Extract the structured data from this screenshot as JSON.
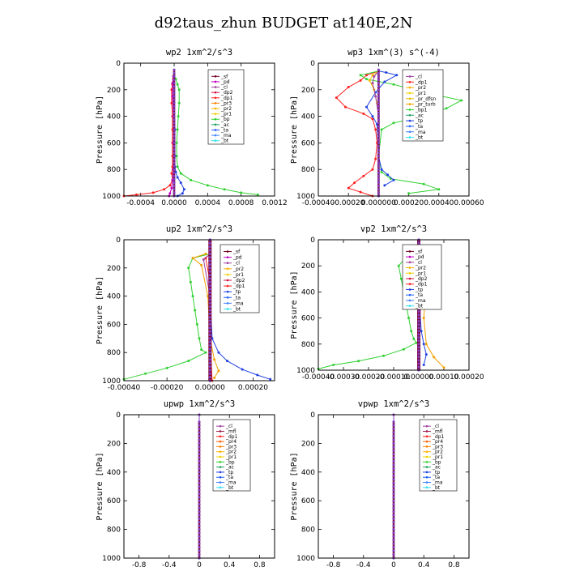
{
  "figure_title": "d92taus_zhun  BUDGET at140E,2N",
  "chart_data": [
    {
      "id": "wp2",
      "type": "line",
      "title": "wp2   1xm^2/s^3",
      "ylabel": "Pressure  [hPa]",
      "ylim": [
        1000,
        0
      ],
      "yticks": [
        0,
        200,
        400,
        600,
        800,
        1000
      ],
      "xlim": [
        -0.0006,
        0.0012
      ],
      "xticks": [
        -0.0004,
        0.0,
        0.0004,
        0.0008,
        0.0012
      ],
      "xtick_labels": [
        "-0.0004",
        "0.0000",
        "0.0004",
        "0.0008",
        "0.0012"
      ],
      "legend": [
        "_sf",
        "_pd",
        "_cl",
        "_dp2",
        "_dp1",
        "_pr3",
        "_pr2",
        "_pr1",
        "_bp",
        "_ac",
        "_ta",
        "_ma",
        "_bt"
      ],
      "series": [
        {
          "name": "_dp1",
          "color": "#ff2020",
          "x": [
            0.0,
            -1e-05,
            -2e-05,
            -3e-05,
            -3e-05,
            -2e-05,
            -2e-05,
            -2e-05,
            -2e-05,
            -2e-05,
            -3e-05,
            -2e-05,
            -5e-05,
            -0.00012,
            -0.00025,
            -0.00045,
            -0.0006
          ],
          "y": [
            90,
            120,
            160,
            200,
            300,
            400,
            500,
            600,
            700,
            780,
            830,
            880,
            920,
            950,
            975,
            990,
            1000
          ]
        },
        {
          "name": "_bp",
          "color": "#30d030",
          "x": [
            0.0,
            2e-05,
            4e-05,
            6e-05,
            6e-05,
            5e-05,
            4e-05,
            3e-05,
            3e-05,
            4e-05,
            8e-05,
            0.0002,
            0.0004,
            0.0006,
            0.0008,
            0.001
          ],
          "y": [
            90,
            120,
            160,
            200,
            300,
            400,
            500,
            600,
            700,
            780,
            830,
            880,
            920,
            950,
            975,
            990
          ]
        },
        {
          "name": "_ta",
          "color": "#2040e0",
          "x": [
            0.0,
            0.0,
            1e-05,
            1e-05,
            1e-05,
            2e-05,
            4e-05,
            8e-05,
            0.00012,
            0.0001,
            4e-05
          ],
          "y": [
            100,
            300,
            500,
            700,
            780,
            820,
            860,
            900,
            950,
            980,
            1000
          ]
        },
        {
          "name": "_pd",
          "color": "#c000c0",
          "x": [
            -1e-05,
            -2e-05,
            -2e-05,
            -1e-05,
            -1e-05,
            -1e-05,
            -2e-05,
            -3e-05,
            -5e-05,
            -6e-05
          ],
          "y": [
            100,
            150,
            250,
            400,
            600,
            800,
            880,
            940,
            980,
            1000
          ]
        },
        {
          "name": "_bt",
          "color": "#30e0f0",
          "x": [
            0.0,
            0.0,
            0.0,
            0.0,
            0.0,
            0.0
          ],
          "y": [
            100,
            300,
            500,
            700,
            900,
            1000
          ]
        },
        {
          "name": "_sf",
          "color": "#700020",
          "x": [
            0.0,
            0.0,
            0.0,
            0.0
          ],
          "y": [
            100,
            400,
            700,
            1000
          ]
        }
      ]
    },
    {
      "id": "wp3",
      "type": "line",
      "title": "wp3   1xm^(3) s^(-4)",
      "ylabel": "Pressure  [hPa]",
      "ylim": [
        1000,
        0
      ],
      "yticks": [
        0,
        200,
        400,
        600,
        800,
        1000
      ],
      "xlim": [
        -0.0004,
        0.0006
      ],
      "xticks": [
        -0.0004,
        -0.0002,
        0.0,
        0.0002,
        0.0004,
        0.0006
      ],
      "xtick_labels": [
        "-0.00040",
        "-0.00020",
        "0.000000",
        "0.00020",
        "0.00040",
        "0.00060"
      ],
      "legend": [
        "_cl",
        "_dp1",
        "_pr2",
        "_pr1",
        "_pr_dfsn",
        "_pr_turb",
        "_bp1",
        "_ac",
        "_tp",
        "_ta",
        "_ma",
        "_bt"
      ],
      "series": [
        {
          "name": "_dp1",
          "color": "#ff2020",
          "x": [
            0.0,
            -8e-05,
            -0.00012,
            -0.0002,
            -0.00028,
            -0.00022,
            -0.0001,
            -4e-05,
            -2e-05,
            -1e-05,
            -2e-05,
            -4e-05,
            -0.0001,
            -0.00016,
            -0.0002,
            -0.00012,
            -4e-05
          ],
          "y": [
            60,
            90,
            130,
            180,
            260,
            330,
            380,
            420,
            500,
            600,
            720,
            800,
            850,
            900,
            940,
            970,
            1000
          ]
        },
        {
          "name": "_bp1",
          "color": "#30d030",
          "x": [
            0.0,
            -0.00012,
            -8e-05,
            0.0001,
            0.0003,
            0.00055,
            0.00045,
            0.0003,
            0.0001,
            2e-05,
            0.0,
            2e-05,
            8e-05,
            0.0003,
            0.0004,
            0.0002
          ],
          "y": [
            60,
            90,
            120,
            160,
            220,
            280,
            340,
            400,
            450,
            500,
            700,
            820,
            870,
            910,
            950,
            980
          ]
        },
        {
          "name": "_tp",
          "color": "#2040e0",
          "x": [
            0.0,
            5e-05,
            0.00012,
            4e-05,
            -2e-05,
            -8e-05,
            -4e-05,
            -1e-05,
            0.0,
            2e-05,
            6e-05,
            0.0001,
            4e-05
          ],
          "y": [
            60,
            70,
            90,
            140,
            220,
            330,
            400,
            460,
            700,
            800,
            840,
            880,
            920
          ]
        },
        {
          "name": "_pr1",
          "color": "#f0c000",
          "x": [
            0.0,
            -4e-05,
            -6e-05,
            -3e-05,
            -1e-05,
            0.0
          ],
          "y": [
            60,
            90,
            130,
            200,
            300,
            400
          ]
        },
        {
          "name": "_cl",
          "color": "#a040a0",
          "x": [
            0.0,
            -3e-05,
            -4e-05,
            -2e-05,
            0.0
          ],
          "y": [
            60,
            100,
            150,
            250,
            400
          ]
        },
        {
          "name": "_bt",
          "color": "#30e0f0",
          "x": [
            0.0,
            0.0,
            0.0,
            0.0
          ],
          "y": [
            60,
            400,
            700,
            1000
          ]
        }
      ]
    },
    {
      "id": "up2",
      "type": "line",
      "title": "up2   1xm^2/s^3",
      "ylabel": "Pressure  [hPa]",
      "ylim": [
        1000,
        0
      ],
      "yticks": [
        0,
        200,
        400,
        600,
        800,
        1000
      ],
      "xlim": [
        -0.0004,
        0.0003
      ],
      "xticks": [
        -0.0004,
        -0.0002,
        0.0,
        0.0002
      ],
      "xtick_labels": [
        "-0.00040",
        "-0.00020",
        "0.00000",
        "0.00020"
      ],
      "legend": [
        "_sf",
        "_pd",
        "_cl",
        "_pr2",
        "_pr1",
        "_dp2",
        "_dp1",
        "_tp",
        "_ta",
        "_ma",
        "_bt"
      ],
      "series": [
        {
          "name": "_dp1",
          "color": "#30d030",
          "x": [
            0.0,
            -8e-05,
            -0.0001,
            -9e-05,
            -8e-05,
            -7e-05,
            -6e-05,
            -5e-05,
            -4e-05,
            -2e-05,
            -0.0001,
            -0.0002,
            -0.0003,
            -0.0004
          ],
          "y": [
            100,
            130,
            200,
            300,
            400,
            500,
            600,
            700,
            780,
            800,
            860,
            910,
            950,
            990
          ]
        },
        {
          "name": "_pr1",
          "color": "#f0a000",
          "x": [
            -2e-05,
            -8e-05,
            -4e-05,
            -1e-05,
            0.0,
            2e-05,
            4e-05,
            2e-05
          ],
          "y": [
            100,
            130,
            180,
            400,
            700,
            850,
            930,
            980
          ]
        },
        {
          "name": "_ta",
          "color": "#2040e0",
          "x": [
            0.0,
            0.0,
            1e-05,
            4e-05,
            8e-05,
            0.00015,
            0.00022,
            0.00028
          ],
          "y": [
            100,
            400,
            700,
            800,
            860,
            920,
            960,
            990
          ]
        },
        {
          "name": "_dp2",
          "color": "#ff2020",
          "x": [
            0.0,
            -2e-05,
            0.0,
            0.0,
            1e-05
          ],
          "y": [
            100,
            130,
            300,
            700,
            1000
          ]
        },
        {
          "name": "_cl",
          "color": "#a040a0",
          "x": [
            0.0,
            -3e-05,
            0.0,
            0.0
          ],
          "y": [
            100,
            140,
            400,
            1000
          ]
        },
        {
          "name": "_sf",
          "color": "#700020",
          "x": [
            0.0,
            0.0,
            0.0
          ],
          "y": [
            0,
            500,
            1000
          ]
        }
      ]
    },
    {
      "id": "vp2",
      "type": "line",
      "title": "vp2   1xm^2/s^3",
      "ylabel": "Pressure  [hPa]",
      "ylim": [
        1000,
        0
      ],
      "yticks": [
        0,
        200,
        400,
        600,
        800,
        1000
      ],
      "xlim": [
        -0.0004,
        0.0002
      ],
      "xticks": [
        -0.0004,
        -0.0003,
        -0.0002,
        -0.0001,
        0.0,
        0.0001,
        0.0002
      ],
      "xtick_labels": [
        "-0.00040",
        "-0.00030",
        "-0.00020",
        "-0.00010",
        "0.00000",
        "0.00010",
        "0.00020"
      ],
      "legend": [
        "_sf",
        "_pd",
        "_cl",
        "_pr2",
        "_pr1",
        "_dp2",
        "_dp1",
        "_tp",
        "_ta",
        "_ma",
        "_bt"
      ],
      "series": [
        {
          "name": "_dp1",
          "color": "#30d030",
          "x": [
            0.0,
            -5e-05,
            -8e-05,
            -7e-05,
            -6e-05,
            -5e-05,
            -4e-05,
            -3e-05,
            -2e-05,
            -1e-05,
            -6e-05,
            -0.00014,
            -0.00024,
            -0.00034,
            -0.0004
          ],
          "y": [
            100,
            130,
            200,
            300,
            400,
            500,
            600,
            700,
            760,
            790,
            840,
            890,
            930,
            960,
            990
          ]
        },
        {
          "name": "_pr1",
          "color": "#f0a000",
          "x": [
            0.0,
            2e-05,
            5e-05,
            3e-05,
            2e-05,
            3e-05,
            6e-05,
            0.0001
          ],
          "y": [
            100,
            150,
            200,
            300,
            600,
            800,
            900,
            980
          ]
        },
        {
          "name": "_ta",
          "color": "#2040e0",
          "x": [
            0.0,
            0.0,
            1e-05,
            2e-05,
            3e-05,
            2e-05
          ],
          "y": [
            100,
            400,
            700,
            800,
            880,
            960
          ]
        },
        {
          "name": "_cl",
          "color": "#a040a0",
          "x": [
            0.0,
            2e-05,
            1e-05,
            0.0
          ],
          "y": [
            100,
            150,
            300,
            1000
          ]
        },
        {
          "name": "_sf",
          "color": "#700020",
          "x": [
            0.0,
            0.0,
            0.0
          ],
          "y": [
            0,
            500,
            1000
          ]
        }
      ]
    },
    {
      "id": "upwp",
      "type": "line",
      "title": "upwp   1xm^2/s^3",
      "ylabel": "Pressure  [hPa]",
      "ylim": [
        1000,
        0
      ],
      "yticks": [
        0,
        200,
        400,
        600,
        800,
        1000
      ],
      "xlim": [
        -1.0,
        1.0
      ],
      "xticks": [
        -0.8,
        -0.4,
        0.0,
        0.4,
        0.8
      ],
      "xtick_labels": [
        "-0.8",
        "-0.4",
        "0",
        "0.4",
        "0.8"
      ],
      "legend": [
        "_cl",
        "_mfl",
        "_dp1",
        "_pr4",
        "_pr3",
        "_pr2",
        "_pr1",
        "_bp",
        "_ac",
        "_tp",
        "_ta",
        "_ma",
        "_bt"
      ],
      "series": [
        {
          "name": "_dp1",
          "color": "#a02050",
          "x": [
            0,
            0,
            0,
            0
          ],
          "y": [
            0,
            400,
            800,
            1000
          ]
        },
        {
          "name": "_cl",
          "color": "#8040c0",
          "x": [
            0,
            0,
            0,
            0
          ],
          "y": [
            0,
            400,
            800,
            1000
          ]
        }
      ]
    },
    {
      "id": "vpwp",
      "type": "line",
      "title": "vpwp   1xm^2/s^3",
      "ylabel": "Pressure  [hPa]",
      "ylim": [
        1000,
        0
      ],
      "yticks": [
        0,
        200,
        400,
        600,
        800,
        1000
      ],
      "xlim": [
        -1.0,
        1.0
      ],
      "xticks": [
        -0.8,
        -0.4,
        0.0,
        0.4,
        0.8
      ],
      "xtick_labels": [
        "-0.8",
        "-0.4",
        "0",
        "0.4",
        "0.8"
      ],
      "legend": [
        "_cl",
        "_mfl",
        "_dp1",
        "_pr4",
        "_pr3",
        "_pr2",
        "_pr1",
        "_bp",
        "_ac",
        "_tp",
        "_ta",
        "_ma",
        "_bt"
      ],
      "series": [
        {
          "name": "_dp1",
          "color": "#a02050",
          "x": [
            0,
            0,
            0,
            0
          ],
          "y": [
            0,
            400,
            800,
            1000
          ]
        },
        {
          "name": "_cl",
          "color": "#8040c0",
          "x": [
            0,
            0,
            0,
            0
          ],
          "y": [
            0,
            400,
            800,
            1000
          ]
        }
      ]
    }
  ],
  "legend_colors": {
    "_sf": "#700020",
    "_pd": "#c000c0",
    "_cl": "#a040a0",
    "_dp2": "#d01040",
    "_dp1": "#ff2020",
    "_pr3": "#ff8000",
    "_pr2": "#ffb000",
    "_pr1": "#f0d000",
    "_pr4": "#ff6000",
    "_bp": "#30d030",
    "_bp1": "#30d030",
    "_ac": "#20a060",
    "_tp": "#2040e0",
    "_ta": "#2060ff",
    "_ma": "#4080ff",
    "_bt": "#30e0f0",
    "_mfl": "#a02050",
    "_pr_dfsn": "#e0c000",
    "_pr_turb": "#f0a000"
  }
}
